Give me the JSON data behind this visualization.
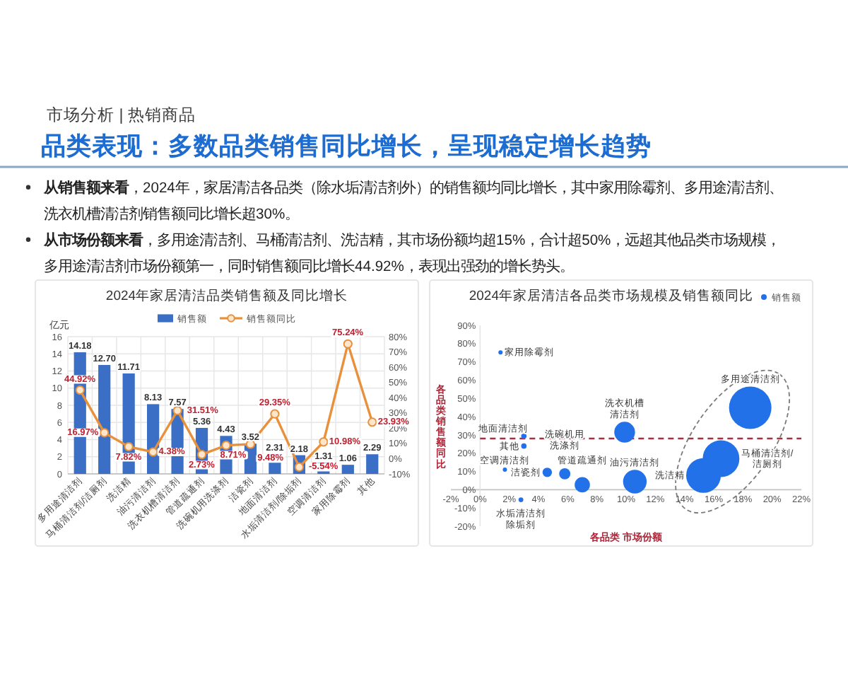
{
  "chart_data": [
    {
      "type": "other",
      "subtitle": "市场分析 | 热销商品",
      "title": "品类表现：多数品类销售同比增长，呈现稳定增长趋势",
      "annotations": [
        "从销售额来看，2024年，家居清洁各品类（除水垢清洁剂外）的销售额均同比增长，其中家用除霉剂、多用途清洁剂、洗衣机槽清洁剂销售额同比增长超30%。",
        "从市场份额来看，多用途清洁剂、马桶清洁剂、洗洁精，其市场份额均超15%，合计超50%，远超其他品类市场规模，多用途清洁剂市场份额第一，同时销售额同比增长44.92%，表现出强劲的增长势头。"
      ]
    },
    {
      "type": "bar",
      "title": "2024年家居清洁品类销售额及同比增长",
      "ylabel": "亿元",
      "categories": [
        "多用途清洁剂",
        "马桶清洁剂/洁厕剂",
        "洗洁精",
        "油污清洁剂",
        "洗衣机槽清洁剂",
        "管道疏通剂",
        "洗碗机用洗涤剂",
        "洁瓷剂",
        "地面清洁剂",
        "水垢清洁剂/除垢剂",
        "空调清洁剂",
        "家用除霉剂",
        "其他"
      ],
      "series": [
        {
          "name": "销售额",
          "type": "bar",
          "color": "#3b6fc6",
          "values": [
            14.18,
            12.7,
            11.71,
            8.13,
            7.57,
            5.36,
            4.43,
            3.52,
            2.31,
            2.18,
            1.31,
            1.06,
            2.29
          ],
          "value_labels": [
            "14.18",
            "12.70",
            "11.71",
            "8.13",
            "7.57",
            "5.36",
            "4.43",
            "3.52",
            "2.31",
            "2.18",
            "1.31",
            "1.06",
            "2.29"
          ]
        },
        {
          "name": "销售额同比",
          "type": "line",
          "axis": "y2",
          "color": "#e8913c",
          "values": [
            44.92,
            16.97,
            7.82,
            4.38,
            31.51,
            2.73,
            8.71,
            9.48,
            29.35,
            -5.54,
            10.98,
            75.24,
            23.93
          ],
          "value_labels": [
            "44.92%",
            "16.97%",
            "7.82%",
            "4.38%",
            "31.51%",
            "2.73%",
            "8.71%",
            "9.48%",
            "29.35%",
            "-5.54%",
            "10.98%",
            "75.24%",
            "23.93%"
          ]
        }
      ],
      "ylim": [
        0,
        16
      ],
      "yticks": [
        0,
        2,
        4,
        6,
        8,
        10,
        12,
        14,
        16
      ],
      "y2lim": [
        -10,
        80
      ],
      "y2ticks": [
        {
          "value": -10,
          "label": "-10%"
        },
        {
          "value": 0,
          "label": "0%"
        },
        {
          "value": 10,
          "label": "10%"
        },
        {
          "value": 20,
          "label": "20%"
        },
        {
          "value": 30,
          "label": "30%"
        },
        {
          "value": 40,
          "label": "40%"
        },
        {
          "value": 50,
          "label": "50%"
        },
        {
          "value": 60,
          "label": "60%"
        },
        {
          "value": 70,
          "label": "70%"
        },
        {
          "value": 80,
          "label": "80%"
        }
      ],
      "grid": true,
      "legend": "top",
      "marker": "circle"
    },
    {
      "type": "bubble",
      "title": "2024年家居清洁各品类市场规模及销售额同比",
      "xlabel": "各品类 市场份额",
      "ylabel": "各品类销售额同比",
      "series": [
        {
          "name": "销售额",
          "color": "#2371e8",
          "x": [
            18.5,
            16.5,
            15.3,
            10.6,
            9.9,
            7.0,
            5.8,
            4.6,
            3.0,
            2.8,
            1.7,
            1.4,
            3.0
          ],
          "values": [
            44.9,
            17.0,
            7.8,
            4.4,
            31.5,
            2.7,
            8.7,
            9.5,
            29.4,
            -5.5,
            11.0,
            75.2,
            23.9
          ],
          "sizes": [
            1,
            0.75,
            0.67,
            0.31,
            0.24,
            0.13,
            0.07,
            0.05,
            0.016,
            0.013,
            0.01,
            0.01,
            0.016
          ]
        }
      ],
      "xlim": [
        -2,
        22
      ],
      "xticks": [
        {
          "value": -2,
          "label": "-2%"
        },
        {
          "value": 0,
          "label": "0%"
        },
        {
          "value": 2,
          "label": "2%"
        },
        {
          "value": 4,
          "label": "4%"
        },
        {
          "value": 6,
          "label": "6%"
        },
        {
          "value": 8,
          "label": "8%"
        },
        {
          "value": 10,
          "label": "10%"
        },
        {
          "value": 12,
          "label": "12%"
        },
        {
          "value": 14,
          "label": "14%"
        },
        {
          "value": 16,
          "label": "16%"
        },
        {
          "value": 18,
          "label": "18%"
        },
        {
          "value": 20,
          "label": "20%"
        },
        {
          "value": 22,
          "label": "22%"
        }
      ],
      "ylim": [
        -20,
        90
      ],
      "yticks": [
        {
          "value": -20,
          "label": "-20%"
        },
        {
          "value": -10,
          "label": "-10%"
        },
        {
          "value": 0,
          "label": "0%"
        },
        {
          "value": 10,
          "label": "10%"
        },
        {
          "value": 20,
          "label": "20%"
        },
        {
          "value": 30,
          "label": "30%"
        },
        {
          "value": 40,
          "label": "40%"
        },
        {
          "value": 50,
          "label": "50%"
        },
        {
          "value": 60,
          "label": "60%"
        },
        {
          "value": 70,
          "label": "70%"
        },
        {
          "value": 80,
          "label": "80%"
        },
        {
          "value": 90,
          "label": "90%"
        }
      ],
      "ref_lines": [
        {
          "axis": "y",
          "value": 28,
          "color": "#a6303f",
          "line_style": "dashed"
        }
      ],
      "annotations": [
        {
          "text": "多用途清洁剂",
          "x": 18.5,
          "y": 44.9
        },
        {
          "text": "马桶清洁剂/洁厕剂",
          "x": 16.5,
          "y": 17.0
        },
        {
          "text": "洗洁精",
          "x": 15.3,
          "y": 7.8
        },
        {
          "text": "油污清洁剂",
          "x": 10.6,
          "y": 4.4
        },
        {
          "text": "洗衣机槽清洁剂",
          "x": 9.9,
          "y": 31.5
        },
        {
          "text": "管道疏通剂",
          "x": 7.0,
          "y": 2.7
        },
        {
          "text": "洗碗机用洗涤剂",
          "x": 5.8,
          "y": 8.7
        },
        {
          "text": "洁瓷剂",
          "x": 4.6,
          "y": 9.5
        },
        {
          "text": "地面清洁剂",
          "x": 3.0,
          "y": 29.4
        },
        {
          "text": "水垢清洁剂除垢剂",
          "x": 2.8,
          "y": -5.5
        },
        {
          "text": "空调清洁剂",
          "x": 1.7,
          "y": 11.0
        },
        {
          "text": "家用除霉剂",
          "x": 1.4,
          "y": 75.2
        },
        {
          "text": "其他",
          "x": 3.0,
          "y": 23.9
        }
      ],
      "legend": "top right"
    }
  ]
}
